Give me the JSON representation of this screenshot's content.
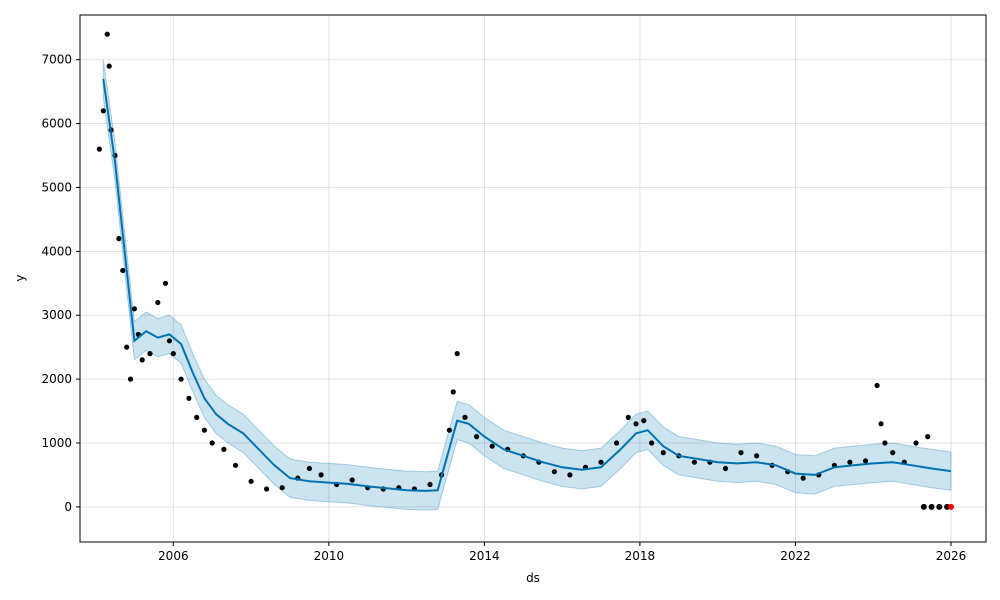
{
  "chart_data": {
    "type": "line",
    "title": "",
    "xlabel": "ds",
    "ylabel": "y",
    "xlim": [
      2003.6,
      2026.9
    ],
    "ylim": [
      -550,
      7700
    ],
    "x_ticks": [
      2006,
      2010,
      2014,
      2018,
      2022,
      2026
    ],
    "x_tick_labels": [
      "2006",
      "2010",
      "2014",
      "2018",
      "2022",
      "2026"
    ],
    "y_ticks": [
      0,
      1000,
      2000,
      3000,
      4000,
      5000,
      6000,
      7000
    ],
    "y_tick_labels": [
      "0",
      "1000",
      "2000",
      "3000",
      "4000",
      "5000",
      "6000",
      "7000"
    ],
    "grid": true,
    "colors": {
      "observed": "#000000",
      "forecast": "#0072B2",
      "interval": "#0072B2",
      "highlight": "#ff0000"
    },
    "forecast": {
      "x": [
        2004.2,
        2004.5,
        2004.8,
        2005.0,
        2005.3,
        2005.6,
        2005.9,
        2006.2,
        2006.5,
        2006.8,
        2007.1,
        2007.4,
        2007.8,
        2008.2,
        2008.6,
        2009.0,
        2009.5,
        2010.0,
        2010.5,
        2011.0,
        2011.5,
        2012.0,
        2012.5,
        2012.8,
        2013.0,
        2013.3,
        2013.6,
        2014.0,
        2014.5,
        2015.0,
        2015.5,
        2016.0,
        2016.5,
        2017.0,
        2017.5,
        2017.9,
        2018.2,
        2018.6,
        2019.0,
        2019.5,
        2020.0,
        2020.5,
        2021.0,
        2021.5,
        2022.0,
        2022.5,
        2023.0,
        2023.5,
        2024.0,
        2024.5,
        2025.0,
        2025.5,
        2026.0
      ],
      "yhat": [
        6700,
        5400,
        3700,
        2600,
        2750,
        2650,
        2700,
        2550,
        2100,
        1700,
        1450,
        1300,
        1150,
        900,
        650,
        450,
        400,
        380,
        360,
        320,
        290,
        260,
        250,
        260,
        700,
        1350,
        1300,
        1100,
        900,
        800,
        700,
        620,
        580,
        620,
        900,
        1150,
        1200,
        950,
        800,
        750,
        700,
        680,
        700,
        650,
        520,
        500,
        620,
        650,
        680,
        700,
        650,
        600,
        560
      ],
      "yhat_lower": [
        6400,
        5100,
        3400,
        2300,
        2450,
        2350,
        2400,
        2250,
        1800,
        1400,
        1150,
        1000,
        850,
        600,
        350,
        150,
        100,
        80,
        60,
        20,
        -10,
        -40,
        -50,
        -40,
        400,
        1050,
        1000,
        800,
        600,
        500,
        400,
        320,
        280,
        320,
        600,
        850,
        900,
        650,
        500,
        450,
        400,
        380,
        400,
        350,
        220,
        200,
        320,
        350,
        380,
        400,
        350,
        300,
        260
      ],
      "yhat_upper": [
        7000,
        5700,
        4000,
        2900,
        3050,
        2950,
        3000,
        2850,
        2400,
        2000,
        1750,
        1600,
        1450,
        1200,
        950,
        750,
        700,
        680,
        660,
        620,
        590,
        560,
        550,
        560,
        1000,
        1650,
        1600,
        1400,
        1200,
        1100,
        1000,
        920,
        880,
        920,
        1200,
        1450,
        1500,
        1250,
        1100,
        1050,
        1000,
        980,
        1000,
        950,
        820,
        800,
        920,
        950,
        980,
        1000,
        950,
        900,
        860
      ]
    },
    "observed": {
      "x": [
        2004.1,
        2004.2,
        2004.3,
        2004.35,
        2004.4,
        2004.5,
        2004.6,
        2004.7,
        2004.8,
        2004.9,
        2005.0,
        2005.1,
        2005.2,
        2005.4,
        2005.6,
        2005.8,
        2005.9,
        2006.0,
        2006.2,
        2006.4,
        2006.6,
        2006.8,
        2007.0,
        2007.3,
        2007.6,
        2008.0,
        2008.4,
        2008.8,
        2009.2,
        2009.5,
        2009.8,
        2010.2,
        2010.6,
        2011.0,
        2011.4,
        2011.8,
        2012.2,
        2012.6,
        2012.9,
        2013.1,
        2013.2,
        2013.3,
        2013.5,
        2013.8,
        2014.2,
        2014.6,
        2015.0,
        2015.4,
        2015.8,
        2016.2,
        2016.6,
        2017.0,
        2017.4,
        2017.7,
        2017.9,
        2018.1,
        2018.3,
        2018.6,
        2019.0,
        2019.4,
        2019.8,
        2020.2,
        2020.6,
        2021.0,
        2021.4,
        2021.8,
        2022.2,
        2022.6,
        2023.0,
        2023.4,
        2023.8,
        2024.1,
        2024.2,
        2024.3,
        2024.5,
        2024.8,
        2025.1,
        2025.4
      ],
      "y": [
        5600,
        6200,
        7400,
        6900,
        5900,
        5500,
        4200,
        3700,
        2500,
        2000,
        3100,
        2700,
        2300,
        2400,
        3200,
        3500,
        2600,
        2400,
        2000,
        1700,
        1400,
        1200,
        1000,
        900,
        650,
        400,
        280,
        300,
        450,
        600,
        500,
        350,
        420,
        300,
        280,
        300,
        280,
        350,
        500,
        1200,
        1800,
        2400,
        1400,
        1100,
        950,
        900,
        800,
        700,
        550,
        500,
        620,
        700,
        1000,
        1400,
        1300,
        1350,
        1000,
        850,
        800,
        700,
        700,
        600,
        850,
        800,
        650,
        550,
        450,
        500,
        650,
        700,
        720,
        1900,
        1300,
        1000,
        850,
        700,
        1000,
        1100
      ]
    },
    "holdout_x": [
      2025.3,
      2025.5,
      2025.7,
      2025.9,
      2026.0
    ],
    "holdout_y": [
      0,
      0,
      0,
      0,
      0
    ]
  }
}
